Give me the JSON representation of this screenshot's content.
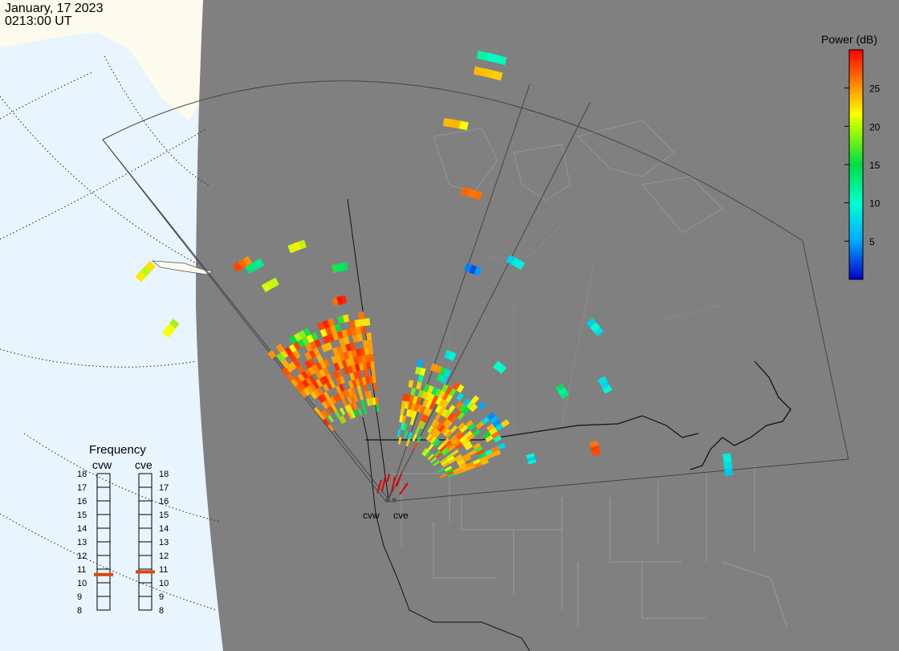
{
  "header": {
    "date": "January, 17 2023",
    "time": "0213:00 UT"
  },
  "colors": {
    "ocean": "#e8f5ff",
    "land_dark": "#808080",
    "land_light": "#fdfbee",
    "grid": "#222222",
    "boundary": "#9a9a9a",
    "coast": "#111111"
  },
  "colorbar": {
    "title": "Power (dB)",
    "ticks": [
      "25",
      "20",
      "15",
      "10",
      "5"
    ],
    "tick_values": [
      25,
      20,
      15,
      10,
      5
    ],
    "range": [
      0,
      30
    ]
  },
  "frequency": {
    "title": "Frequency",
    "radars": [
      {
        "code": "cvw",
        "frequency_mhz": 10.6
      },
      {
        "code": "cve",
        "frequency_mhz": 10.8
      }
    ],
    "ticks": [
      "18",
      "17",
      "16",
      "15",
      "14",
      "13",
      "12",
      "11",
      "10",
      "9",
      "8"
    ],
    "range": [
      8,
      18
    ],
    "marker_color": "#d9480f"
  },
  "radar_sites": [
    {
      "code": "cvw",
      "label": "cvw"
    },
    {
      "code": "cve",
      "label": "cve"
    }
  ]
}
